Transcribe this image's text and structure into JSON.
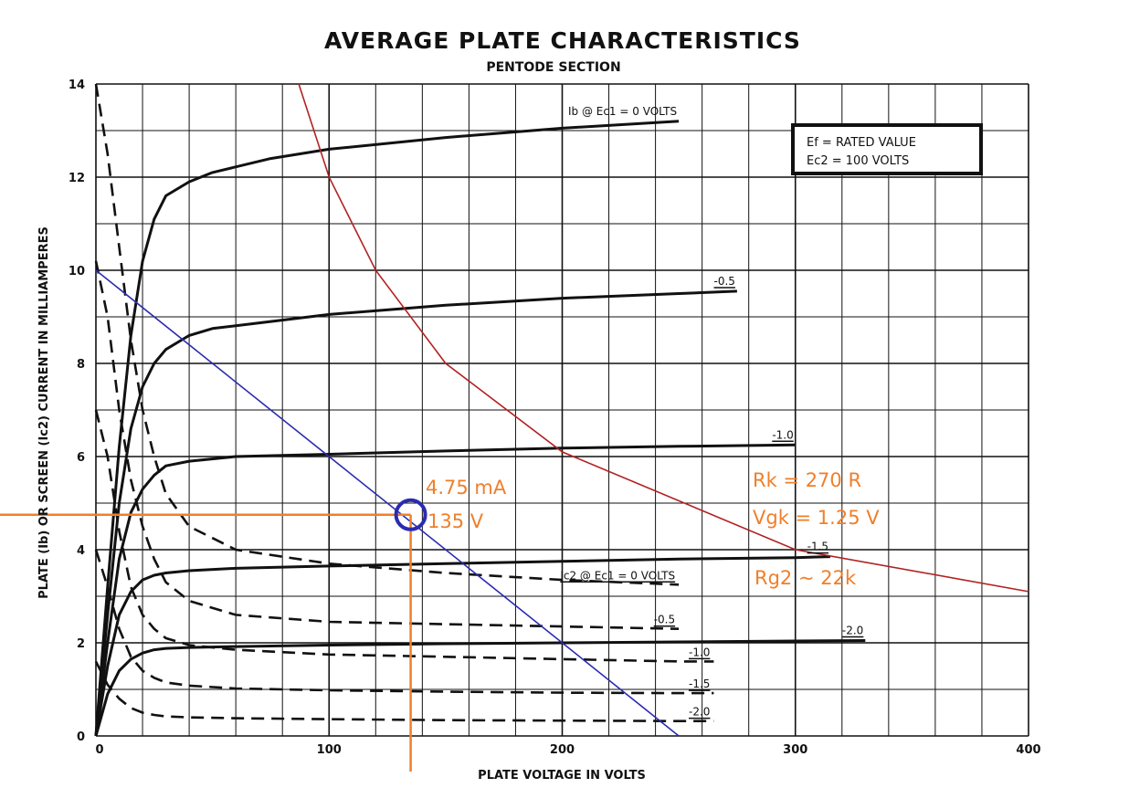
{
  "chart_data": {
    "type": "line",
    "title": "AVERAGE PLATE CHARACTERISTICS",
    "subtitle": "PENTODE SECTION",
    "xlabel": "PLATE VOLTAGE IN VOLTS",
    "ylabel": "PLATE (Ib) OR SCREEN (Ic2) CURRENT IN MILLIAMPERES",
    "xlim": [
      0,
      400
    ],
    "ylim": [
      0,
      14
    ],
    "xticks": [
      "0",
      "100",
      "200",
      "300",
      "400"
    ],
    "yticks": [
      "0",
      "2",
      "4",
      "6",
      "8",
      "10",
      "12",
      "14"
    ],
    "grid": true,
    "legend_box": {
      "line1": "Ef = RATED VALUE",
      "line2": "Ec2 = 100 VOLTS",
      "placement": "top-right"
    },
    "plate_series": [
      {
        "label": "Ib @ Ec1 = 0 VOLTS",
        "x": [
          0,
          5,
          10,
          15,
          20,
          25,
          30,
          40,
          50,
          75,
          100,
          150,
          200,
          250
        ],
        "y": [
          0,
          3.2,
          6.2,
          8.6,
          10.2,
          11.1,
          11.6,
          11.9,
          12.1,
          12.4,
          12.6,
          12.85,
          13.05,
          13.2
        ]
      },
      {
        "label": "-0.5",
        "x": [
          0,
          5,
          10,
          15,
          20,
          25,
          30,
          40,
          50,
          75,
          100,
          150,
          200,
          250,
          275
        ],
        "y": [
          0,
          2.6,
          5.0,
          6.6,
          7.5,
          8.0,
          8.3,
          8.6,
          8.75,
          8.9,
          9.05,
          9.25,
          9.4,
          9.5,
          9.55
        ]
      },
      {
        "label": "-1.0",
        "x": [
          0,
          5,
          10,
          15,
          20,
          25,
          30,
          40,
          60,
          100,
          150,
          200,
          250,
          300
        ],
        "y": [
          0,
          2.0,
          3.8,
          4.8,
          5.3,
          5.6,
          5.8,
          5.9,
          6.0,
          6.05,
          6.12,
          6.18,
          6.22,
          6.25
        ]
      },
      {
        "label": "-1.5",
        "x": [
          0,
          5,
          10,
          15,
          20,
          25,
          30,
          40,
          60,
          100,
          150,
          200,
          250,
          300,
          315
        ],
        "y": [
          0,
          1.5,
          2.6,
          3.1,
          3.35,
          3.45,
          3.5,
          3.55,
          3.6,
          3.65,
          3.7,
          3.75,
          3.8,
          3.83,
          3.85
        ]
      },
      {
        "label": "-2.0",
        "x": [
          0,
          5,
          10,
          15,
          20,
          25,
          30,
          40,
          60,
          100,
          150,
          200,
          250,
          300,
          330
        ],
        "y": [
          0,
          0.9,
          1.4,
          1.65,
          1.78,
          1.85,
          1.88,
          1.9,
          1.92,
          1.95,
          1.98,
          2.0,
          2.02,
          2.04,
          2.05
        ]
      }
    ],
    "screen_series": [
      {
        "label": "Ic2 @ Ec1 = 0 VOLTS",
        "x": [
          0,
          5,
          10,
          15,
          20,
          25,
          30,
          40,
          60,
          100,
          150,
          200,
          250
        ],
        "y": [
          14.0,
          12.5,
          10.5,
          8.5,
          7.0,
          6.0,
          5.2,
          4.5,
          4.0,
          3.7,
          3.5,
          3.35,
          3.25
        ]
      },
      {
        "label": "-0.5",
        "x": [
          0,
          5,
          10,
          15,
          20,
          25,
          30,
          40,
          60,
          100,
          150,
          200,
          250
        ],
        "y": [
          10.2,
          9.0,
          7.0,
          5.5,
          4.5,
          3.8,
          3.3,
          2.9,
          2.6,
          2.45,
          2.4,
          2.35,
          2.3
        ]
      },
      {
        "label": "-1.0",
        "x": [
          0,
          5,
          10,
          15,
          20,
          25,
          30,
          40,
          60,
          100,
          150,
          200,
          250,
          265
        ],
        "y": [
          7.0,
          6.0,
          4.4,
          3.2,
          2.6,
          2.3,
          2.1,
          1.95,
          1.85,
          1.75,
          1.7,
          1.65,
          1.6,
          1.6
        ]
      },
      {
        "label": "-1.5",
        "x": [
          0,
          5,
          10,
          15,
          20,
          25,
          30,
          40,
          60,
          100,
          150,
          200,
          250,
          265
        ],
        "y": [
          4.0,
          3.2,
          2.3,
          1.7,
          1.4,
          1.25,
          1.15,
          1.08,
          1.02,
          0.98,
          0.95,
          0.93,
          0.92,
          0.92
        ]
      },
      {
        "label": "-2.0",
        "x": [
          0,
          5,
          10,
          15,
          20,
          25,
          30,
          40,
          60,
          100,
          150,
          200,
          250,
          265
        ],
        "y": [
          1.6,
          1.1,
          0.8,
          0.6,
          0.5,
          0.45,
          0.42,
          0.4,
          0.38,
          0.36,
          0.34,
          0.33,
          0.32,
          0.32
        ]
      }
    ],
    "dissipation_curve": {
      "x": [
        87,
        100,
        120,
        150,
        200,
        300,
        400
      ],
      "y": [
        14.0,
        12.0,
        10.0,
        8.0,
        6.1,
        4.0,
        3.1
      ]
    },
    "load_line": {
      "x": [
        0,
        250
      ],
      "y": [
        10.0,
        0
      ]
    },
    "operating_point": {
      "x": 135,
      "y": 4.75
    },
    "annotations": {
      "current": "4.75 mA",
      "voltage": "135 V",
      "rk": "Rk = 270 R",
      "vgk": "Vgk = 1.25 V",
      "rg2": "Rg2 ~ 22k"
    },
    "colors": {
      "curves": "#111111",
      "dissipation": "#b22222",
      "load_line": "#2b2bb0",
      "annotation": "#f07f2a",
      "grid": "#111111"
    }
  }
}
